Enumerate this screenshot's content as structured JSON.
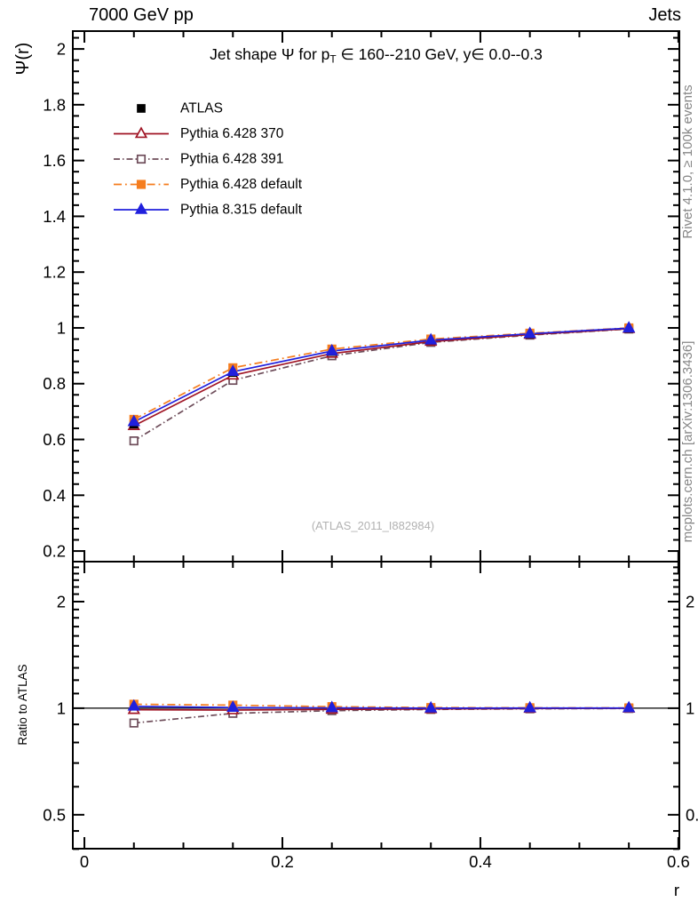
{
  "header": {
    "left": "7000 GeV pp",
    "right": "Jets"
  },
  "title": {
    "part1": "Jet shape Ψ for p",
    "sub": "T",
    "part2": " ∈ 160--210 GeV, y∈ 0.0--0.3"
  },
  "watermark": "(ATLAS_2011_I882984)",
  "right_notes": {
    "top": "Rivet 4.1.0, ≥ 100k events",
    "bottom": "mcplots.cern.ch [arXiv:1306.3436]",
    "color": "#878787"
  },
  "axes": {
    "x": {
      "label": "r",
      "min": -0.0117,
      "max": 0.601,
      "majors": [
        {
          "v": 0,
          "label": "0"
        },
        {
          "v": 0.2,
          "label": "0.2"
        },
        {
          "v": 0.4,
          "label": "0.4"
        },
        {
          "v": 0.6,
          "label": "0.6"
        }
      ],
      "minor_step": 0.05
    },
    "y_main": {
      "label": "Ψ(r)",
      "min": 0.162,
      "max": 2.064,
      "majors": [
        {
          "v": 0.2,
          "label": "0.2"
        },
        {
          "v": 0.4,
          "label": "0.4"
        },
        {
          "v": 0.6,
          "label": "0.6"
        },
        {
          "v": 0.8,
          "label": "0.8"
        },
        {
          "v": 1,
          "label": "1"
        },
        {
          "v": 1.2,
          "label": "1.2"
        },
        {
          "v": 1.4,
          "label": "1.4"
        },
        {
          "v": 1.6,
          "label": "1.6"
        },
        {
          "v": 1.8,
          "label": "1.8"
        },
        {
          "v": 2,
          "label": "2"
        }
      ],
      "minor_step": 0.04
    },
    "y_ratio": {
      "label": "Ratio to ATLAS",
      "scale": "log",
      "min": 0.401,
      "max": 2.594,
      "majors": [
        {
          "v": 0.5,
          "label": "0.5"
        },
        {
          "v": 1,
          "label": "1"
        },
        {
          "v": 2,
          "label": "2"
        }
      ],
      "minors": [
        0.4,
        0.45,
        0.6,
        0.7,
        0.8,
        0.9,
        1.1,
        1.2,
        1.3,
        1.4,
        1.5,
        1.6,
        1.7,
        1.8,
        1.9,
        2.1,
        2.2,
        2.3,
        2.4,
        2.5
      ]
    }
  },
  "chart_data": [
    {
      "type": "line",
      "title": "Jet shape Ψ for p_T ∈ 160--210 GeV, y∈ 0.0--0.3",
      "xlabel": "r",
      "ylabel": "Ψ(r)",
      "xlim": [
        -0.0117,
        0.601
      ],
      "ylim": [
        0.162,
        2.064
      ],
      "grid": false,
      "legend_position": "top-left",
      "x": [
        0.05,
        0.15,
        0.25,
        0.35,
        0.45,
        0.55
      ],
      "series": [
        {
          "name": "ATLAS",
          "color": "#000000",
          "line": "none",
          "marker": "square",
          "fill": true,
          "size": 8.5,
          "values": [
            0.655,
            0.84,
            0.915,
            0.956,
            0.978,
            0.998
          ]
        },
        {
          "name": "Pythia 6.428 370",
          "color": "#a01525",
          "line": "solid",
          "marker": "triangle",
          "fill": false,
          "size": 11,
          "values": [
            0.649,
            0.83,
            0.908,
            0.951,
            0.976,
            0.997
          ]
        },
        {
          "name": "Pythia 6.428 391",
          "color": "#6e4d5a",
          "line": "dashdot",
          "marker": "square",
          "fill": false,
          "size": 9,
          "values": [
            0.595,
            0.812,
            0.9,
            0.948,
            0.974,
            0.996
          ]
        },
        {
          "name": "Pythia 6.428 default",
          "color": "#f57d1e",
          "line": "dashdot2",
          "marker": "square",
          "fill": true,
          "size": 9,
          "values": [
            0.672,
            0.857,
            0.924,
            0.96,
            0.981,
            1.0
          ]
        },
        {
          "name": "Pythia 8.315 default",
          "color": "#2020dd",
          "line": "solid",
          "marker": "triangle",
          "fill": true,
          "size": 11,
          "values": [
            0.663,
            0.843,
            0.917,
            0.956,
            0.979,
            0.999
          ]
        }
      ]
    },
    {
      "type": "line",
      "ylabel": "Ratio to ATLAS",
      "yscale": "log",
      "ylim": [
        0.401,
        2.594
      ],
      "yticks": [
        0.5,
        1,
        2
      ],
      "reference_line": 1,
      "x": [
        0.05,
        0.15,
        0.25,
        0.35,
        0.45,
        0.55
      ],
      "series": [
        {
          "name": "Pythia 6.428 370",
          "values": [
            0.99,
            0.988,
            0.992,
            0.995,
            0.998,
            0.999
          ]
        },
        {
          "name": "Pythia 6.428 391",
          "values": [
            0.908,
            0.967,
            0.984,
            0.992,
            0.996,
            0.998
          ]
        },
        {
          "name": "Pythia 6.428 default",
          "values": [
            1.026,
            1.02,
            1.01,
            1.004,
            1.003,
            1.002
          ]
        },
        {
          "name": "Pythia 8.315 default",
          "values": [
            1.012,
            1.004,
            1.002,
            1.0,
            1.001,
            1.001
          ]
        }
      ]
    }
  ]
}
